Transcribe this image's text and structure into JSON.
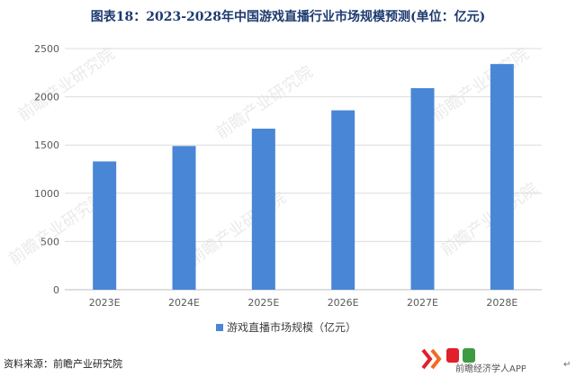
{
  "title": "图表18：2023-2028年中国游戏直播行业市场规模预测(单位：亿元)",
  "source": "资料来源：前瞻产业研究院",
  "logo": {
    "brand": "前瞻经济学人APP",
    "mark_colors": [
      "#e0202a",
      "#f26b21",
      "#3e9a43"
    ]
  },
  "watermark_text": "前瞻产业研究院",
  "return_arrow": "↵",
  "colors": {
    "bar": "#4a86d6",
    "grid": "#dcdcdc",
    "axis": "#bfbfbf",
    "tick": "#595959"
  },
  "chart_data": {
    "type": "bar",
    "categories": [
      "2023E",
      "2024E",
      "2025E",
      "2026E",
      "2027E",
      "2028E"
    ],
    "series": [
      {
        "name": "游戏直播市场规模（亿元）",
        "values": [
          1330,
          1490,
          1670,
          1860,
          2090,
          2340
        ]
      }
    ],
    "ylim": [
      0,
      2500
    ],
    "yticks": [
      0,
      500,
      1000,
      1500,
      2000,
      2500
    ],
    "grid": true,
    "legend": "bottom-center"
  }
}
